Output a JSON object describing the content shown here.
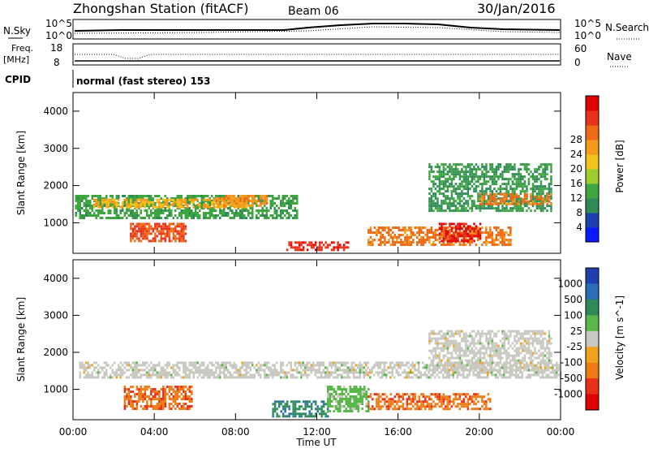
{
  "header": {
    "station": "Zhongshan Station (fitACF)",
    "beam": "Beam 06",
    "date": "30/Jan/2016"
  },
  "strip": {
    "nsky_label": "N.Sky",
    "nsearch_label": "N.Search",
    "freq_label_1": "Freq.",
    "freq_label_2": "[MHz]",
    "nave_label": "Nave",
    "cpid_label": "CPID",
    "cpid_text": "normal (fast stereo) 153",
    "noise_ticks_left": [
      "10^5",
      "10^0"
    ],
    "noise_ticks_right": [
      "10^5",
      "10^0"
    ],
    "freq_ticks": [
      "18",
      "8"
    ],
    "nave_ticks": [
      "60",
      "0"
    ]
  },
  "axes": {
    "ylabel": "Slant Range [km]",
    "xlabel": "Time UT",
    "yticks": [
      "1000",
      "2000",
      "3000",
      "4000"
    ],
    "xticks": [
      "00:00",
      "04:00",
      "08:00",
      "12:00",
      "16:00",
      "20:00",
      "00:00"
    ]
  },
  "power_scale": {
    "label": "Power [dB]",
    "ticks": [
      "4",
      "8",
      "12",
      "16",
      "20",
      "24",
      "28"
    ],
    "colors": [
      "#0a1aff",
      "#1d3fb4",
      "#2e8b57",
      "#3ea63e",
      "#9ccf2e",
      "#f2c21d",
      "#f59a1c",
      "#f06a16",
      "#e8321a",
      "#e00000"
    ]
  },
  "velocity_scale": {
    "label": "Velocity [m s^-1]",
    "ticks": [
      "1000",
      "500",
      "100",
      "25",
      "-25",
      "-100",
      "-500",
      "-1000"
    ],
    "colors": [
      "#1f3fb0",
      "#2b6db8",
      "#2e8b57",
      "#5ab84a",
      "#c8c8c0",
      "#f0a21c",
      "#f07a14",
      "#e83018",
      "#e00000"
    ]
  },
  "chart_data": [
    {
      "type": "heatmap",
      "name": "power",
      "x_range_hours": [
        0,
        24
      ],
      "y_range_km": [
        180,
        4500
      ],
      "value_unit": "dB",
      "value_range": [
        0,
        30
      ],
      "regions": [
        {
          "t0": 0.1,
          "t1": 11.0,
          "r0": 1150,
          "r1": 1750,
          "v": 10
        },
        {
          "t0": 1.0,
          "t1": 8.5,
          "r0": 1400,
          "r1": 1650,
          "v": 18
        },
        {
          "t0": 7.0,
          "t1": 9.5,
          "r0": 1450,
          "r1": 1750,
          "v": 20
        },
        {
          "t0": 2.8,
          "t1": 5.5,
          "r0": 500,
          "r1": 1000,
          "v": 24
        },
        {
          "t0": 10.5,
          "t1": 13.5,
          "r0": 250,
          "r1": 500,
          "v": 26
        },
        {
          "t0": 14.5,
          "t1": 21.5,
          "r0": 400,
          "r1": 900,
          "v": 22
        },
        {
          "t0": 18.0,
          "t1": 20.0,
          "r0": 500,
          "r1": 1000,
          "v": 28
        },
        {
          "t0": 17.5,
          "t1": 23.5,
          "r0": 1300,
          "r1": 2600,
          "v": 9
        },
        {
          "t0": 20.0,
          "t1": 23.5,
          "r0": 1500,
          "r1": 1800,
          "v": 22
        }
      ]
    },
    {
      "type": "heatmap",
      "name": "velocity",
      "x_range_hours": [
        0,
        24
      ],
      "y_range_km": [
        180,
        4500
      ],
      "value_unit": "m s^-1",
      "value_range": [
        -1000,
        1000
      ],
      "regions": [
        {
          "t0": 0.3,
          "t1": 24.0,
          "r0": 1300,
          "r1": 1750,
          "v": 0
        },
        {
          "t0": 2.5,
          "t1": 5.8,
          "r0": 500,
          "r1": 1100,
          "v": -300
        },
        {
          "t0": 9.8,
          "t1": 12.5,
          "r0": 250,
          "r1": 700,
          "v": 300
        },
        {
          "t0": 12.5,
          "t1": 14.5,
          "r0": 400,
          "r1": 1100,
          "v": 120
        },
        {
          "t0": 14.5,
          "t1": 20.5,
          "r0": 450,
          "r1": 900,
          "v": -300
        },
        {
          "t0": 17.5,
          "t1": 23.5,
          "r0": 1500,
          "r1": 2600,
          "v": 0
        }
      ]
    }
  ]
}
